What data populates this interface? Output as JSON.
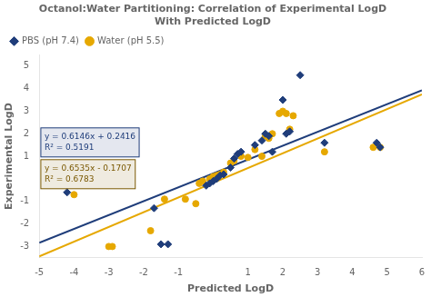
{
  "chart_data": {
    "type": "scatter",
    "title": "Octanol:Water Partitioning: Correlation of Experimental LogD\nWith Predicted LogD",
    "xlabel": "Predicted LogD",
    "ylabel": "Experimental LogD",
    "xlim": [
      -5,
      6
    ],
    "ylim": [
      -3.5,
      5.5
    ],
    "xticks": [
      -5,
      -4,
      -3,
      -2,
      -1,
      1,
      2,
      3,
      4,
      5,
      6
    ],
    "yticks": [
      -3,
      -2,
      -1,
      1,
      2,
      3,
      4,
      5
    ],
    "grid": false,
    "legend": "upper left",
    "series": [
      {
        "name": "PBS (pH 7.4)",
        "color": "#1f3d7a",
        "marker": "diamond",
        "x": [
          -4.2,
          -1.7,
          -1.5,
          -1.3,
          -0.2,
          -0.1,
          0.0,
          0.1,
          0.2,
          0.3,
          0.5,
          0.6,
          0.7,
          0.8,
          1.2,
          1.4,
          1.5,
          1.6,
          1.7,
          2.0,
          2.1,
          2.2,
          2.5,
          3.2,
          4.7,
          4.8
        ],
        "values": [
          -0.6,
          -1.3,
          -2.9,
          -2.9,
          -0.3,
          -0.2,
          -0.1,
          0.0,
          0.15,
          0.2,
          0.5,
          0.9,
          1.1,
          1.2,
          1.5,
          1.7,
          2.0,
          1.9,
          1.2,
          3.5,
          2.0,
          2.1,
          4.6,
          1.6,
          1.6,
          1.4
        ]
      },
      {
        "name": "Water (pH 5.5)",
        "color": "#e6a800",
        "marker": "circle",
        "x": [
          -4.0,
          -3.0,
          -2.9,
          -1.8,
          -1.4,
          -0.8,
          -0.5,
          -0.4,
          -0.3,
          -0.1,
          0.0,
          0.1,
          0.2,
          0.3,
          0.5,
          0.6,
          0.8,
          1.0,
          1.2,
          1.4,
          1.5,
          1.6,
          1.7,
          1.9,
          2.0,
          2.1,
          2.2,
          2.3,
          3.2,
          4.6,
          4.8
        ],
        "values": [
          -0.7,
          -3.0,
          -3.0,
          -2.3,
          -0.9,
          -0.9,
          -1.1,
          -0.2,
          -0.1,
          0.0,
          0.1,
          0.15,
          0.2,
          0.3,
          0.7,
          0.8,
          1.0,
          0.95,
          1.3,
          1.0,
          1.9,
          1.8,
          2.0,
          2.9,
          3.0,
          2.9,
          2.2,
          2.8,
          1.2,
          1.4,
          1.4
        ]
      },
      {
        "type": "line",
        "color": "#1f3d7a",
        "x": [
          -5,
          6
        ],
        "values": [
          -2.8314,
          3.9292
        ]
      },
      {
        "type": "line",
        "color": "#e6a800",
        "x": [
          -5,
          6
        ],
        "values": [
          -3.4382,
          3.7503
        ]
      }
    ],
    "annotations": [
      {
        "text": "y = 0.6146x + 0.2416\nR² = 0.5191",
        "x": -4.85,
        "y": 2.1,
        "color": "#1f3d7a"
      },
      {
        "text": "y = 0.6535x - 0.1707\nR² = 0.6783",
        "x": -4.85,
        "y": 1.05,
        "color": "#7a5800"
      }
    ]
  }
}
